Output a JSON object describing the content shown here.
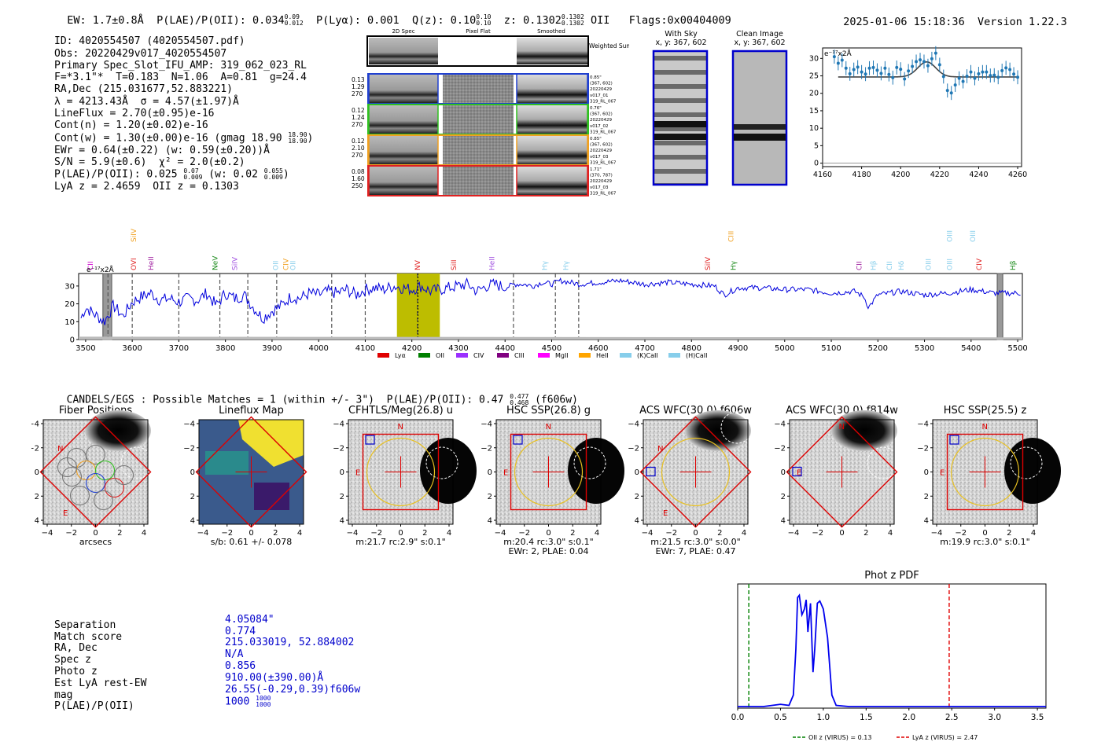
{
  "header": {
    "ew": "EW: 1.7±0.8Å",
    "plae": "P(LAE)/P(OII): 0.034",
    "plae_hi": "0.09",
    "plae_lo": "0.012",
    "plya": "P(Lyα): 0.001",
    "qz": "Q(z): 0.10",
    "qz_hi": "0.10",
    "qz_lo": "0.10",
    "z": "z: 0.1302",
    "z_hi": "0.1302",
    "z_lo": "0.1302",
    "z_line": "OII",
    "flags": "Flags:0x00404009",
    "datetime": "2025-01-06 15:18:36",
    "version": "Version 1.22.3"
  },
  "info": {
    "id": "ID: 4020554507 (4020554507.pdf)",
    "obs": "Obs: 20220429v017_4020554507",
    "primary": "Primary Spec_Slot_IFU_AMP: 319_062_023_RL",
    "params": "F=*3.1\"*  T=0.183  N=1.06  A=0.81  g=24.4",
    "radec": "RA,Dec (215.031677,52.883221)",
    "lambda": "λ = 4213.43Å  σ = 4.57(±1.97)Å",
    "lineflux": "LineFlux = 2.70(±0.95)e-16",
    "contn": "Cont(n) = 1.20(±0.02)e-16",
    "contw": "Cont(w) = 1.30(±0.00)e-16 (gmag 18.90",
    "contw_hi": "18.90",
    "contw_lo": "18.90",
    "contw_end": ")",
    "ewr": "EWr = 0.64(±0.22) (w: 0.59(±0.20))Å",
    "sn": "S/N = 5.9(±0.6)  χ² = 2.0(±0.2)",
    "plae": "P(LAE)/P(OII): 0.025",
    "plae_hi": "0.07",
    "plae_lo": "0.009",
    "plae_w": "(w: 0.02",
    "plae_w_hi": "0.055",
    "plae_w_lo": "0.009",
    "plae_end": ")",
    "lyaz": "LyA z = 2.4659  OII z = 0.1303"
  },
  "cutouts": {
    "headers": [
      "2D Spec",
      "Pixel Flat",
      "Smoothed"
    ],
    "weighted": "Weighted\nSum",
    "rows": [
      {
        "meta": [
          "0.13",
          "1.29",
          "270"
        ],
        "info": [
          "0.85\"",
          "(367, 602)",
          "20220429",
          "v017_01",
          "319_RL_067"
        ],
        "color": "#2040d0"
      },
      {
        "meta": [
          "0.12",
          "1.24",
          "270"
        ],
        "info": [
          "0.76\"",
          "(367, 602)",
          "20220429",
          "v017_02",
          "319_RL_067"
        ],
        "color": "#30c020"
      },
      {
        "meta": [
          "0.12",
          "2.10",
          "270"
        ],
        "info": [
          "0.85\"",
          "(367, 602)",
          "20220429",
          "v017_03",
          "319_RL_067"
        ],
        "color": "#f0a020"
      },
      {
        "meta": [
          "0.08",
          "1.60",
          "250"
        ],
        "info": [
          "1.71\"",
          "(370, 787)",
          "20220429",
          "v017_03",
          "319_RL_067"
        ],
        "color": "#e02020"
      }
    ],
    "with_sky": [
      "With Sky",
      "x, y: 367, 602"
    ],
    "clean": [
      "Clean Image",
      "x, y: 367, 602"
    ]
  },
  "chart_data": [
    {
      "id": "line_fit",
      "type": "scatter",
      "title": "",
      "unit_label": "e⁻¹⁷x2Å",
      "xlim": [
        4160,
        4262
      ],
      "ylim": [
        -1,
        33
      ],
      "xticks": [
        4160,
        4180,
        4200,
        4220,
        4240,
        4260
      ],
      "yticks": [
        0,
        5,
        10,
        15,
        20,
        25,
        30
      ],
      "points": [
        [
          4166,
          30.5
        ],
        [
          4168,
          28.6
        ],
        [
          4170,
          29.5
        ],
        [
          4172,
          27.2
        ],
        [
          4174,
          25.6
        ],
        [
          4176,
          26.8
        ],
        [
          4178,
          27.5
        ],
        [
          4180,
          26.1
        ],
        [
          4182,
          25.5
        ],
        [
          4184,
          27.2
        ],
        [
          4186,
          27.4
        ],
        [
          4188,
          26.6
        ],
        [
          4190,
          25.7
        ],
        [
          4192,
          27.2
        ],
        [
          4194,
          25.4
        ],
        [
          4196,
          24.5
        ],
        [
          4198,
          27.4
        ],
        [
          4200,
          26.9
        ],
        [
          4202,
          24.1
        ],
        [
          4204,
          26.4
        ],
        [
          4206,
          27.7
        ],
        [
          4208,
          29.1
        ],
        [
          4210,
          29.6
        ],
        [
          4212,
          29.1
        ],
        [
          4214,
          27.9
        ],
        [
          4216,
          29.9
        ],
        [
          4218,
          31.5
        ],
        [
          4220,
          28.2
        ],
        [
          4222,
          24.8
        ],
        [
          4224,
          20.8
        ],
        [
          4226,
          20.1
        ],
        [
          4228,
          22.4
        ],
        [
          4230,
          24.3
        ],
        [
          4232,
          23.4
        ],
        [
          4234,
          24.9
        ],
        [
          4236,
          26.1
        ],
        [
          4238,
          24.3
        ],
        [
          4240,
          25.6
        ],
        [
          4242,
          26.1
        ],
        [
          4244,
          26.1
        ],
        [
          4246,
          25.1
        ],
        [
          4248,
          25.2
        ],
        [
          4250,
          24.6
        ],
        [
          4252,
          26.5
        ],
        [
          4254,
          27.3
        ],
        [
          4256,
          26.8
        ],
        [
          4258,
          25.5
        ],
        [
          4260,
          24.6
        ]
      ],
      "fit": {
        "baseline": 24.7,
        "amplitude": 4.3,
        "center": 4213.4,
        "sigma": 4.6,
        "x_from": 4168,
        "x_to": 4260
      }
    },
    {
      "id": "full_spectrum",
      "type": "line",
      "unit_label": "e⁻¹⁷x2Å",
      "xlim": [
        3485,
        5510
      ],
      "ylim": [
        0,
        37
      ],
      "xticks": [
        3500,
        3600,
        3700,
        3800,
        3900,
        4000,
        4100,
        4200,
        4300,
        4400,
        4500,
        4600,
        4700,
        4800,
        4900,
        5000,
        5100,
        5200,
        5300,
        5400,
        5500
      ],
      "yticks": [
        0,
        10,
        20,
        30
      ],
      "highlight": [
        4168,
        4260
      ],
      "marker": 4213,
      "masked_bands": [
        [
          3537,
          3556
        ],
        [
          5456,
          5468
        ]
      ],
      "dashed_lines": [
        3548,
        3600,
        3700,
        3788,
        3848,
        3910,
        4028,
        4100,
        4212,
        4418,
        4508,
        4558
      ],
      "spectrum_knots": [
        [
          3490,
          12
        ],
        [
          3500,
          18
        ],
        [
          3520,
          14
        ],
        [
          3540,
          10
        ],
        [
          3560,
          19
        ],
        [
          3580,
          13
        ],
        [
          3600,
          21
        ],
        [
          3620,
          24
        ],
        [
          3640,
          26
        ],
        [
          3660,
          22
        ],
        [
          3680,
          23
        ],
        [
          3700,
          21
        ],
        [
          3720,
          23
        ],
        [
          3740,
          22
        ],
        [
          3760,
          26
        ],
        [
          3780,
          19
        ],
        [
          3800,
          26
        ],
        [
          3820,
          23
        ],
        [
          3840,
          25
        ],
        [
          3860,
          18
        ],
        [
          3880,
          12
        ],
        [
          3900,
          16
        ],
        [
          3920,
          19
        ],
        [
          3940,
          24
        ],
        [
          3960,
          23
        ],
        [
          3980,
          26
        ],
        [
          4000,
          25
        ],
        [
          4020,
          27
        ],
        [
          4040,
          26
        ],
        [
          4060,
          28
        ],
        [
          4080,
          25
        ],
        [
          4100,
          28
        ],
        [
          4120,
          29
        ],
        [
          4140,
          28
        ],
        [
          4160,
          30
        ],
        [
          4180,
          29
        ],
        [
          4200,
          28
        ],
        [
          4220,
          30
        ],
        [
          4240,
          27
        ],
        [
          4260,
          28
        ],
        [
          4280,
          29
        ],
        [
          4300,
          30
        ],
        [
          4320,
          31
        ],
        [
          4340,
          27
        ],
        [
          4360,
          30
        ],
        [
          4380,
          31
        ],
        [
          4400,
          29
        ],
        [
          4420,
          31
        ],
        [
          4440,
          31
        ],
        [
          4460,
          30
        ],
        [
          4480,
          32
        ],
        [
          4500,
          31
        ],
        [
          4520,
          33
        ],
        [
          4540,
          32
        ],
        [
          4560,
          31
        ],
        [
          4600,
          32
        ],
        [
          4650,
          33
        ],
        [
          4700,
          31
        ],
        [
          4750,
          32
        ],
        [
          4800,
          31
        ],
        [
          4850,
          30
        ],
        [
          4870,
          25
        ],
        [
          4900,
          29
        ],
        [
          4950,
          29
        ],
        [
          5000,
          28
        ],
        [
          5050,
          28
        ],
        [
          5100,
          26
        ],
        [
          5150,
          27
        ],
        [
          5170,
          24
        ],
        [
          5180,
          18
        ],
        [
          5200,
          25
        ],
        [
          5250,
          27
        ],
        [
          5300,
          25
        ],
        [
          5350,
          26
        ],
        [
          5400,
          28
        ],
        [
          5450,
          26
        ],
        [
          5500,
          26
        ],
        [
          5510,
          26
        ]
      ],
      "line_markers": [
        {
          "label": "CII",
          "x": 3510,
          "color": "#d000d0",
          "level": 1
        },
        {
          "label": "OVI",
          "x": 3603,
          "color": "#e02020",
          "level": 1
        },
        {
          "label": "SiIV",
          "x": 3603,
          "color": "#f0a020",
          "level": 2
        },
        {
          "label": "HeII",
          "x": 3640,
          "color": "#a020a0",
          "level": 1
        },
        {
          "label": "NeV",
          "x": 3778,
          "color": "#1a8a1a",
          "level": 1
        },
        {
          "label": "SiIV",
          "x": 3820,
          "color": "#a050e0",
          "level": 1
        },
        {
          "label": "OII",
          "x": 3908,
          "color": "#87ceeb",
          "level": 1
        },
        {
          "label": "CIV",
          "x": 3930,
          "color": "#f0a020",
          "level": 1
        },
        {
          "label": "OII",
          "x": 3945,
          "color": "#87ceeb",
          "level": 1
        },
        {
          "label": "NV",
          "x": 4212,
          "color": "#e02020",
          "level": 1
        },
        {
          "label": "SiII",
          "x": 4290,
          "color": "#e02020",
          "level": 1
        },
        {
          "label": "HeII",
          "x": 4372,
          "color": "#a050e0",
          "level": 1
        },
        {
          "label": "Hγ",
          "x": 4485,
          "color": "#87ceeb",
          "level": 1
        },
        {
          "label": "Hγ",
          "x": 4530,
          "color": "#87ceeb",
          "level": 1
        },
        {
          "label": "SiIV",
          "x": 4835,
          "color": "#e02020",
          "level": 1
        },
        {
          "label": "CIII",
          "x": 4885,
          "color": "#f0a020",
          "level": 2
        },
        {
          "label": "Hγ",
          "x": 4890,
          "color": "#1a8a1a",
          "level": 1
        },
        {
          "label": "CII",
          "x": 5160,
          "color": "#a020a0",
          "level": 1
        },
        {
          "label": "Hβ",
          "x": 5190,
          "color": "#87ceeb",
          "level": 1
        },
        {
          "label": "CII",
          "x": 5225,
          "color": "#87ceeb",
          "level": 1
        },
        {
          "label": "Hδ",
          "x": 5250,
          "color": "#87ceeb",
          "level": 1
        },
        {
          "label": "OIII",
          "x": 5308,
          "color": "#87ceeb",
          "level": 1
        },
        {
          "label": "OIII",
          "x": 5354,
          "color": "#87ceeb",
          "level": 1
        },
        {
          "label": "OIII",
          "x": 5354,
          "color": "#87ceeb",
          "level": 2
        },
        {
          "label": "OIII",
          "x": 5404,
          "color": "#87ceeb",
          "level": 2
        },
        {
          "label": "CIV",
          "x": 5417,
          "color": "#e02020",
          "level": 1
        },
        {
          "label": "Hβ",
          "x": 5490,
          "color": "#1a8a1a",
          "level": 1
        }
      ],
      "legend": [
        {
          "label": "Lyα",
          "color": "#e00000"
        },
        {
          "label": "OII",
          "color": "#008000"
        },
        {
          "label": "CIV",
          "color": "#9b30ff"
        },
        {
          "label": "CIII",
          "color": "#800080"
        },
        {
          "label": "MgII",
          "color": "#ff00ff"
        },
        {
          "label": "HeII",
          "color": "#ffa500"
        },
        {
          "label": "(K)CaII",
          "color": "#87ceeb"
        },
        {
          "label": "(H)CaII",
          "color": "#87ceeb"
        }
      ]
    },
    {
      "id": "phot_z_pdf",
      "type": "line",
      "title": "Phot z PDF",
      "xlim": [
        0.0,
        3.6
      ],
      "ylim": [
        0,
        1
      ],
      "xticks": [
        "0.0",
        "0.5",
        "1.0",
        "1.5",
        "2.0",
        "2.5",
        "3.0",
        "3.5"
      ],
      "pdf_knots": [
        [
          0.0,
          0.0
        ],
        [
          0.3,
          0.0
        ],
        [
          0.5,
          0.02
        ],
        [
          0.6,
          0.01
        ],
        [
          0.65,
          0.1
        ],
        [
          0.68,
          0.5
        ],
        [
          0.7,
          0.95
        ],
        [
          0.72,
          0.97
        ],
        [
          0.75,
          0.8
        ],
        [
          0.78,
          0.85
        ],
        [
          0.8,
          0.93
        ],
        [
          0.82,
          0.65
        ],
        [
          0.85,
          0.9
        ],
        [
          0.88,
          0.3
        ],
        [
          0.9,
          0.5
        ],
        [
          0.93,
          0.9
        ],
        [
          0.96,
          0.92
        ],
        [
          1.0,
          0.85
        ],
        [
          1.05,
          0.6
        ],
        [
          1.1,
          0.1
        ],
        [
          1.15,
          0.01
        ],
        [
          1.3,
          0.0
        ],
        [
          3.6,
          0.0
        ]
      ],
      "vlines": [
        {
          "x": 0.13,
          "color": "#008000",
          "label": "OII z (VIRUS) = 0.13"
        },
        {
          "x": 2.47,
          "color": "#e00000",
          "label": "LyA z (VIRUS) = 2.47"
        }
      ]
    }
  ],
  "catalog": {
    "summary": "CANDELS/EGS : Possible Matches = 1 (within +/- 3\")  P(LAE)/P(OII): 0.47",
    "summary_hi": "0.477",
    "summary_lo": "0.468",
    "summary_end": "(f606w)"
  },
  "stamps": [
    {
      "title": "Fiber Positions",
      "cap1": "arcsecs",
      "cap2": ""
    },
    {
      "title": "Lineflux Map",
      "cap1": "s/b: 0.61 +/- 0.078",
      "cap2": ""
    },
    {
      "title": "CFHTLS/Meg(26.8) u",
      "cap1": "m:21.7 rc:2.9\"  s:0.1\"",
      "cap2": ""
    },
    {
      "title": "HSC SSP(26.8) g",
      "cap1": "m:20.4 rc:3.0\"  s:0.1\"",
      "cap2": "EWr: 2, PLAE: 0.04"
    },
    {
      "title": "ACS WFC(30.0) f606w",
      "cap1": "m:21.5 rc:3.0\"  s:0.0\"",
      "cap2": "EWr: 7, PLAE: 0.47"
    },
    {
      "title": "ACS WFC(30.0) f814w",
      "cap1": "",
      "cap2": ""
    },
    {
      "title": "HSC SSP(25.5) z",
      "cap1": "m:19.9 rc:3.0\"  s:0.1\"",
      "cap2": ""
    }
  ],
  "stamp_axes": {
    "ticks": [
      "−4",
      "−2",
      "0",
      "2",
      "4"
    ],
    "compass_n": "N",
    "compass_e": "E"
  },
  "match": {
    "labels": [
      "Separation",
      "Match score",
      "RA, Dec",
      "Spec z",
      "Photo z",
      "Est LyA rest-EW",
      "mag",
      "P(LAE)/P(OII)"
    ],
    "values": [
      "4.05084\"",
      "0.774",
      "215.033019, 52.884002",
      "N/A",
      "0.856",
      "910.00(±390.00)Å",
      "26.55(-0.29,0.39)f606w",
      "1000"
    ],
    "plae_hi": "1000",
    "plae_lo": "1000"
  },
  "colors": {
    "spectrum": "#0000dd",
    "highlight": "#bdbd00",
    "fit_points": "#1f77b4",
    "pdf": "#0000ee",
    "fiber_box": "#dd0000",
    "aperture": "#e8c020"
  }
}
